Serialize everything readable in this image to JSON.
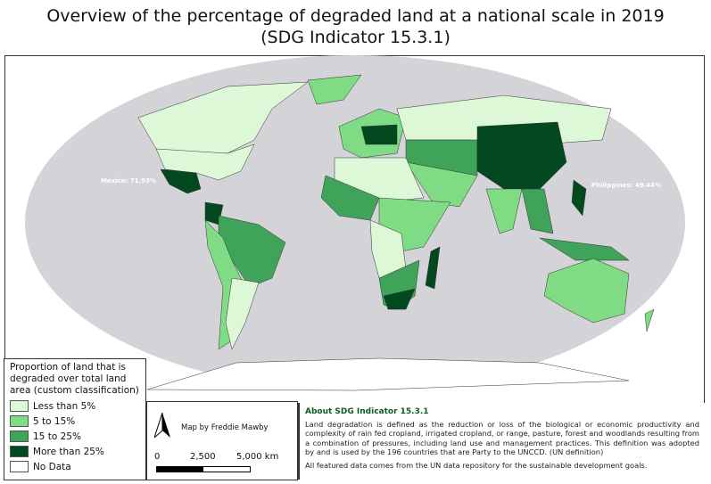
{
  "title": {
    "line1": "Overview of the percentage of degraded land at a national scale in 2019",
    "line2": "(SDG Indicator 15.3.1)"
  },
  "colors": {
    "less5": "#dcf8d6",
    "5to15": "#7fdc85",
    "15to25": "#3fa35a",
    "more25": "#03491f",
    "nodata": "#ffffff",
    "ocean": "#d4d3d8"
  },
  "map_labels": {
    "mexico": "Mexico: 71.93%",
    "philippines": "Philippines: 49.44%"
  },
  "legend": {
    "title": "Proportion of land that is degraded over total land area (custom classification)",
    "items": [
      {
        "label": "Less than 5%",
        "color": "#dcf8d6"
      },
      {
        "label": "5 to 15%",
        "color": "#7fdc85"
      },
      {
        "label": "15 to 25%",
        "color": "#3fa35a"
      },
      {
        "label": "More than 25%",
        "color": "#03491f"
      },
      {
        "label": "No Data",
        "color": "#ffffff"
      }
    ]
  },
  "credit": {
    "author": "Map by Freddie Mawby",
    "scale": [
      "0",
      "2,500",
      "5,000 km"
    ]
  },
  "about": {
    "heading": "About SDG Indicator 15.3.1",
    "definition": "Land degradation is defined as the reduction or loss of the biological or economic productivity and complexity of rain fed cropland, irrigated cropland, or range, pasture, forest and woodlands resulting from a combination of pressures, including land use and management practices. This definition was adopted by and is used by the 196 countries that are Party to the UNCCD. (UN definition)",
    "source": "All featured data comes from the UN data repository for the sustainable development goals."
  }
}
